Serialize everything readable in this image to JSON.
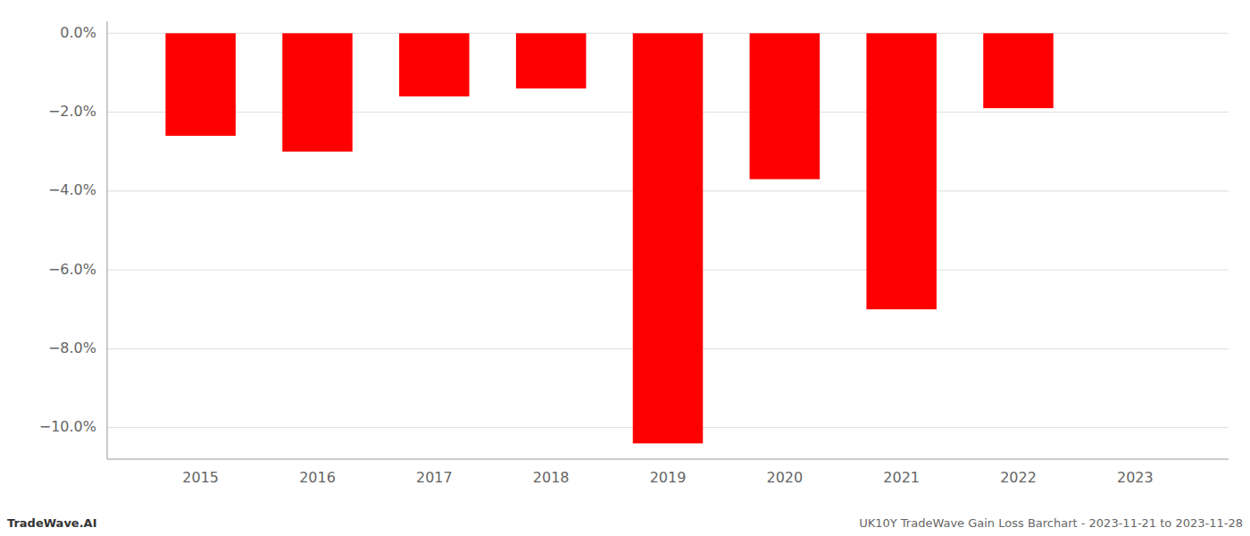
{
  "chart_data": {
    "type": "bar",
    "categories": [
      "2015",
      "2016",
      "2017",
      "2018",
      "2019",
      "2020",
      "2021",
      "2022",
      "2023"
    ],
    "values": [
      -2.6,
      -3.0,
      -1.6,
      -1.4,
      -10.4,
      -3.7,
      -7.0,
      -1.9,
      null
    ],
    "color": "#ff0000",
    "ylim": [
      -10.8,
      0.3
    ],
    "yticks": [
      {
        "value": 0.0,
        "label": "0.0%"
      },
      {
        "value": -2.0,
        "label": "−2.0%"
      },
      {
        "value": -4.0,
        "label": "−4.0%"
      },
      {
        "value": -6.0,
        "label": "−6.0%"
      },
      {
        "value": -8.0,
        "label": "−8.0%"
      },
      {
        "value": -10.0,
        "label": "−10.0%"
      }
    ],
    "grid": true,
    "annotations": [
      "TradeWave.AI",
      "UK10Y TradeWave Gain Loss Barchart - 2023-11-21 to 2023-11-28"
    ]
  }
}
